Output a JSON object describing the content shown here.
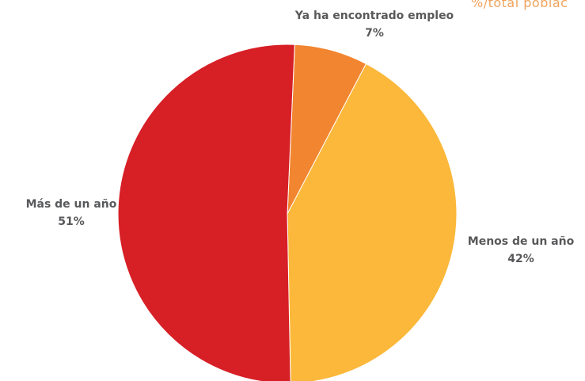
{
  "note": "%/total poblac",
  "chart_data": {
    "type": "pie",
    "slices": [
      {
        "label": "Ya ha encontrado empleo",
        "value": 7,
        "value_label": "7%",
        "color": "#f28530"
      },
      {
        "label": "Menos de un año",
        "value": 42,
        "value_label": "42%",
        "color": "#fbb83a"
      },
      {
        "label": "Más de un año",
        "value": 51,
        "value_label": "51%",
        "color": "#d71f26"
      }
    ],
    "start_angle_deg": 2.5,
    "direction": "clockwise"
  }
}
